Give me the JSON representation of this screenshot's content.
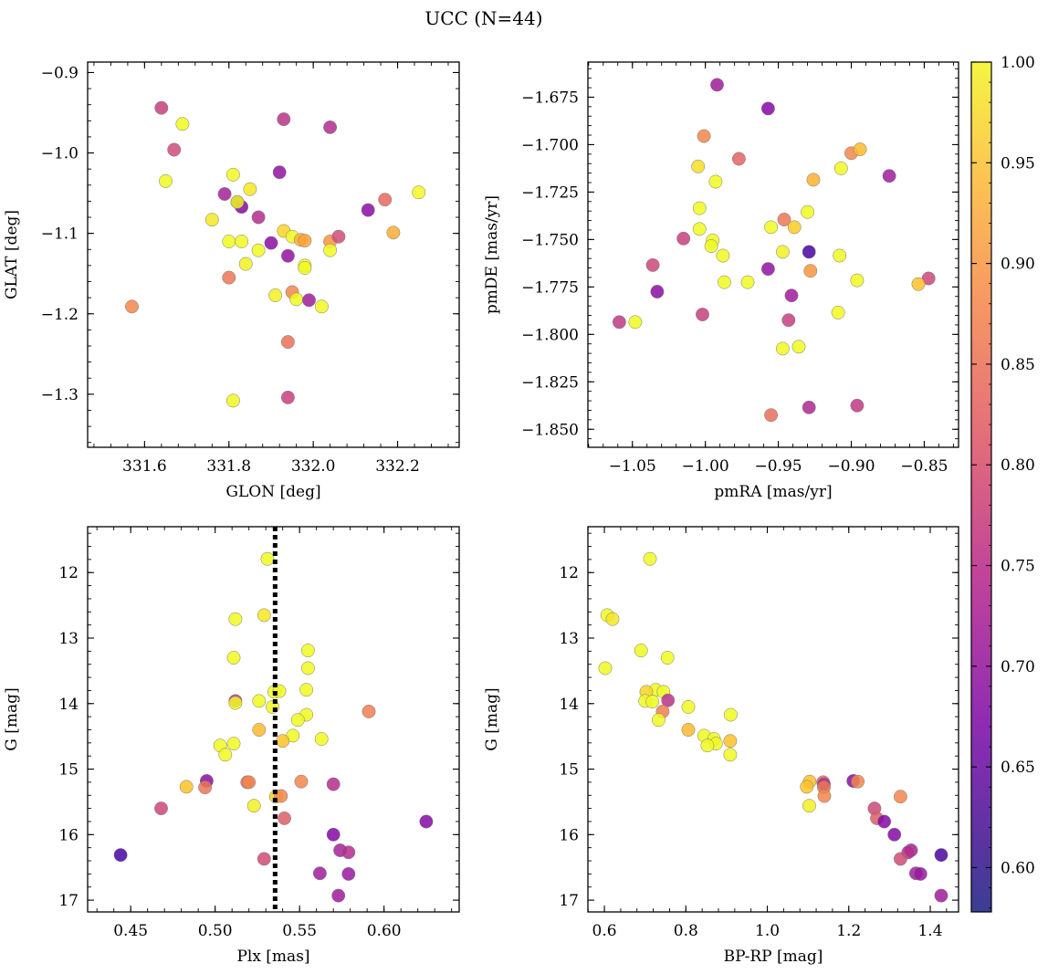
{
  "figure": {
    "title": "UCC (N=44)"
  },
  "colorbar": {
    "colormap": "plasma",
    "vmin": 0.578,
    "vmax": 1.0,
    "ticks": [
      "0.60",
      "0.65",
      "0.70",
      "0.75",
      "0.80",
      "0.85",
      "0.90",
      "0.95",
      "1.00"
    ],
    "tick_values": [
      0.6,
      0.65,
      0.7,
      0.75,
      0.8,
      0.85,
      0.9,
      0.95,
      1.0
    ]
  },
  "chart_data": [
    {
      "type": "scatter",
      "id": "glon-glat",
      "xlabel": "GLON [deg]",
      "ylabel": "GLAT [deg]",
      "xlim": [
        331.465,
        332.346
      ],
      "ylim": [
        -1.366,
        -0.887
      ],
      "y_inverted": false,
      "xticks": [
        "331.6",
        "331.8",
        "332.0",
        "332.2"
      ],
      "xtick_values": [
        331.6,
        331.8,
        332.0,
        332.2
      ],
      "yticks": [
        "−0.9",
        "−1.0",
        "−1.1",
        "−1.2",
        "−1.3"
      ],
      "ytick_values": [
        -0.9,
        -1.0,
        -1.1,
        -1.2,
        -1.3
      ],
      "points": [
        {
          "x": 331.64,
          "y": -0.944,
          "c": 0.75
        },
        {
          "x": 331.69,
          "y": -0.964,
          "c": 1.0
        },
        {
          "x": 331.67,
          "y": -0.996,
          "c": 0.77
        },
        {
          "x": 331.65,
          "y": -1.035,
          "c": 1.0
        },
        {
          "x": 331.57,
          "y": -1.191,
          "c": 0.86
        },
        {
          "x": 331.76,
          "y": -1.083,
          "c": 0.98
        },
        {
          "x": 331.79,
          "y": -1.051,
          "c": 0.7
        },
        {
          "x": 331.81,
          "y": -1.027,
          "c": 1.0
        },
        {
          "x": 331.82,
          "y": -1.061,
          "c": 0.62
        },
        {
          "x": 331.83,
          "y": -1.067,
          "c": 0.65
        },
        {
          "x": 331.82,
          "y": -1.061,
          "c": 1.0
        },
        {
          "x": 331.85,
          "y": -1.045,
          "c": 0.98
        },
        {
          "x": 331.87,
          "y": -1.08,
          "c": 0.72
        },
        {
          "x": 331.8,
          "y": -1.11,
          "c": 1.0
        },
        {
          "x": 331.83,
          "y": -1.11,
          "c": 1.0
        },
        {
          "x": 331.84,
          "y": -1.138,
          "c": 0.99
        },
        {
          "x": 331.8,
          "y": -1.155,
          "c": 0.84
        },
        {
          "x": 331.81,
          "y": -1.308,
          "c": 1.0
        },
        {
          "x": 331.87,
          "y": -1.121,
          "c": 1.0
        },
        {
          "x": 331.9,
          "y": -1.112,
          "c": 0.66
        },
        {
          "x": 331.92,
          "y": -1.024,
          "c": 0.67
        },
        {
          "x": 331.93,
          "y": -0.958,
          "c": 0.73
        },
        {
          "x": 331.93,
          "y": -1.097,
          "c": 0.96
        },
        {
          "x": 331.91,
          "y": -1.177,
          "c": 0.99
        },
        {
          "x": 331.94,
          "y": -1.128,
          "c": 0.67
        },
        {
          "x": 331.95,
          "y": -1.104,
          "c": 1.0
        },
        {
          "x": 331.97,
          "y": -1.108,
          "c": 0.92
        },
        {
          "x": 331.98,
          "y": -1.109,
          "c": 0.9
        },
        {
          "x": 331.98,
          "y": -1.14,
          "c": 1.0
        },
        {
          "x": 331.98,
          "y": -1.143,
          "c": 1.0
        },
        {
          "x": 331.95,
          "y": -1.173,
          "c": 0.86
        },
        {
          "x": 331.96,
          "y": -1.182,
          "c": 1.0
        },
        {
          "x": 331.99,
          "y": -1.183,
          "c": 0.69
        },
        {
          "x": 331.94,
          "y": -1.235,
          "c": 0.83
        },
        {
          "x": 331.94,
          "y": -1.304,
          "c": 0.75
        },
        {
          "x": 332.02,
          "y": -1.191,
          "c": 1.0
        },
        {
          "x": 332.04,
          "y": -0.968,
          "c": 0.72
        },
        {
          "x": 332.04,
          "y": -1.11,
          "c": 0.88
        },
        {
          "x": 332.06,
          "y": -1.104,
          "c": 0.77
        },
        {
          "x": 332.04,
          "y": -1.121,
          "c": 1.0
        },
        {
          "x": 332.13,
          "y": -1.071,
          "c": 0.66
        },
        {
          "x": 332.17,
          "y": -1.058,
          "c": 0.82
        },
        {
          "x": 332.19,
          "y": -1.099,
          "c": 0.91
        },
        {
          "x": 332.25,
          "y": -1.049,
          "c": 1.0
        }
      ]
    },
    {
      "type": "scatter",
      "id": "pmra-pmde",
      "xlabel": "pmRA [mas/yr]",
      "ylabel": "pmDE [mas/yr]",
      "xlim": [
        -1.0805,
        -0.8265
      ],
      "ylim": [
        -1.8595,
        -1.6565
      ],
      "y_inverted": false,
      "xticks": [
        "−1.05",
        "−1.00",
        "−0.95",
        "−0.90",
        "−0.85"
      ],
      "xtick_values": [
        -1.05,
        -1.0,
        -0.95,
        -0.9,
        -0.85
      ],
      "yticks": [
        "−1.675",
        "−1.700",
        "−1.725",
        "−1.750",
        "−1.775",
        "−1.800",
        "−1.825",
        "−1.850"
      ],
      "ytick_values": [
        -1.675,
        -1.7,
        -1.725,
        -1.75,
        -1.775,
        -1.8,
        -1.825,
        -1.85
      ],
      "points": [
        {
          "x": -0.992,
          "y": -1.6685,
          "c": 0.69
        },
        {
          "x": -0.957,
          "y": -1.681,
          "c": 0.65
        },
        {
          "x": -1.001,
          "y": -1.6955,
          "c": 0.86
        },
        {
          "x": -0.977,
          "y": -1.7075,
          "c": 0.81
        },
        {
          "x": -1.005,
          "y": -1.7115,
          "c": 0.97
        },
        {
          "x": -0.993,
          "y": -1.7195,
          "c": 1.0
        },
        {
          "x": -0.9,
          "y": -1.7045,
          "c": 0.86
        },
        {
          "x": -0.894,
          "y": -1.7025,
          "c": 0.93
        },
        {
          "x": -0.907,
          "y": -1.7125,
          "c": 1.0
        },
        {
          "x": -0.926,
          "y": -1.7185,
          "c": 0.92
        },
        {
          "x": -0.874,
          "y": -1.7165,
          "c": 0.69
        },
        {
          "x": -1.004,
          "y": -1.7335,
          "c": 1.0
        },
        {
          "x": -0.93,
          "y": -1.7355,
          "c": 1.0
        },
        {
          "x": -0.946,
          "y": -1.7395,
          "c": 0.84
        },
        {
          "x": -1.004,
          "y": -1.7445,
          "c": 1.0
        },
        {
          "x": -0.955,
          "y": -1.7435,
          "c": 1.0
        },
        {
          "x": -0.939,
          "y": -1.7435,
          "c": 0.95
        },
        {
          "x": -1.015,
          "y": -1.7495,
          "c": 0.75
        },
        {
          "x": -0.995,
          "y": -1.7505,
          "c": 1.0
        },
        {
          "x": -0.996,
          "y": -1.7535,
          "c": 1.0
        },
        {
          "x": -0.988,
          "y": -1.7585,
          "c": 1.0
        },
        {
          "x": -0.947,
          "y": -1.7565,
          "c": 0.99
        },
        {
          "x": -0.929,
          "y": -1.7565,
          "c": 0.58
        },
        {
          "x": -0.908,
          "y": -1.7585,
          "c": 1.0
        },
        {
          "x": -1.036,
          "y": -1.7635,
          "c": 0.76
        },
        {
          "x": -0.957,
          "y": -1.7655,
          "c": 0.67
        },
        {
          "x": -0.928,
          "y": -1.7665,
          "c": 0.88
        },
        {
          "x": -0.847,
          "y": -1.7705,
          "c": 0.76
        },
        {
          "x": -0.896,
          "y": -1.7715,
          "c": 1.0
        },
        {
          "x": -0.987,
          "y": -1.7725,
          "c": 1.0
        },
        {
          "x": -0.971,
          "y": -1.7725,
          "c": 1.0
        },
        {
          "x": -0.854,
          "y": -1.7735,
          "c": 0.94
        },
        {
          "x": -1.033,
          "y": -1.7775,
          "c": 0.66
        },
        {
          "x": -0.941,
          "y": -1.7795,
          "c": 0.69
        },
        {
          "x": -1.002,
          "y": -1.7895,
          "c": 0.75
        },
        {
          "x": -0.909,
          "y": -1.7885,
          "c": 1.0
        },
        {
          "x": -1.059,
          "y": -1.7935,
          "c": 0.74
        },
        {
          "x": -1.048,
          "y": -1.7935,
          "c": 1.0
        },
        {
          "x": -0.943,
          "y": -1.7925,
          "c": 0.75
        },
        {
          "x": -0.947,
          "y": -1.8075,
          "c": 1.0
        },
        {
          "x": -0.936,
          "y": -1.8065,
          "c": 1.0
        },
        {
          "x": -0.896,
          "y": -1.8375,
          "c": 0.74
        },
        {
          "x": -0.929,
          "y": -1.8385,
          "c": 0.71
        },
        {
          "x": -0.955,
          "y": -1.8425,
          "c": 0.83
        }
      ]
    },
    {
      "type": "scatter",
      "id": "plx-g",
      "xlabel": "Plx [mas]",
      "ylabel": "G [mag]",
      "xlim": [
        0.4245,
        0.6445
      ],
      "ylim": [
        17.18,
        11.3
      ],
      "y_inverted": true,
      "vline": 0.5355,
      "xticks": [
        "0.45",
        "0.50",
        "0.55",
        "0.60"
      ],
      "xtick_values": [
        0.45,
        0.5,
        0.55,
        0.6
      ],
      "yticks": [
        "12",
        "13",
        "14",
        "15",
        "16",
        "17"
      ],
      "ytick_values": [
        12,
        13,
        14,
        15,
        16,
        17
      ],
      "points": [
        {
          "x": 0.531,
          "y": 11.79,
          "c": 1.0
        },
        {
          "x": 0.512,
          "y": 12.71,
          "c": 1.0
        },
        {
          "x": 0.529,
          "y": 12.65,
          "c": 0.98
        },
        {
          "x": 0.555,
          "y": 13.19,
          "c": 1.0
        },
        {
          "x": 0.511,
          "y": 13.3,
          "c": 1.0
        },
        {
          "x": 0.555,
          "y": 13.46,
          "c": 1.0
        },
        {
          "x": 0.535,
          "y": 13.82,
          "c": 1.0
        },
        {
          "x": 0.538,
          "y": 13.81,
          "c": 1.0
        },
        {
          "x": 0.554,
          "y": 13.79,
          "c": 1.0
        },
        {
          "x": 0.512,
          "y": 13.96,
          "c": 0.73
        },
        {
          "x": 0.512,
          "y": 13.99,
          "c": 1.0
        },
        {
          "x": 0.526,
          "y": 13.96,
          "c": 1.0
        },
        {
          "x": 0.534,
          "y": 14.05,
          "c": 1.0
        },
        {
          "x": 0.591,
          "y": 14.12,
          "c": 0.85
        },
        {
          "x": 0.554,
          "y": 14.17,
          "c": 1.0
        },
        {
          "x": 0.549,
          "y": 14.25,
          "c": 1.0
        },
        {
          "x": 0.526,
          "y": 14.4,
          "c": 0.93
        },
        {
          "x": 0.546,
          "y": 14.49,
          "c": 1.0
        },
        {
          "x": 0.54,
          "y": 14.57,
          "c": 0.94
        },
        {
          "x": 0.563,
          "y": 14.54,
          "c": 1.0
        },
        {
          "x": 0.511,
          "y": 14.61,
          "c": 1.0
        },
        {
          "x": 0.503,
          "y": 14.64,
          "c": 1.0
        },
        {
          "x": 0.506,
          "y": 14.78,
          "c": 1.0
        },
        {
          "x": 0.495,
          "y": 15.18,
          "c": 0.66
        },
        {
          "x": 0.483,
          "y": 15.27,
          "c": 0.94
        },
        {
          "x": 0.494,
          "y": 15.28,
          "c": 0.84
        },
        {
          "x": 0.519,
          "y": 15.2,
          "c": 0.82
        },
        {
          "x": 0.52,
          "y": 15.2,
          "c": 0.86
        },
        {
          "x": 0.551,
          "y": 15.19,
          "c": 0.86
        },
        {
          "x": 0.57,
          "y": 15.23,
          "c": 0.72
        },
        {
          "x": 0.536,
          "y": 15.42,
          "c": 0.96
        },
        {
          "x": 0.539,
          "y": 15.41,
          "c": 0.86
        },
        {
          "x": 0.523,
          "y": 15.56,
          "c": 0.99
        },
        {
          "x": 0.468,
          "y": 15.6,
          "c": 0.76
        },
        {
          "x": 0.541,
          "y": 15.75,
          "c": 0.8
        },
        {
          "x": 0.625,
          "y": 15.8,
          "c": 0.65
        },
        {
          "x": 0.444,
          "y": 16.31,
          "c": 0.58
        },
        {
          "x": 0.57,
          "y": 16.0,
          "c": 0.65
        },
        {
          "x": 0.574,
          "y": 16.24,
          "c": 0.7
        },
        {
          "x": 0.579,
          "y": 16.27,
          "c": 0.72
        },
        {
          "x": 0.529,
          "y": 16.37,
          "c": 0.77
        },
        {
          "x": 0.562,
          "y": 16.59,
          "c": 0.69
        },
        {
          "x": 0.579,
          "y": 16.6,
          "c": 0.68
        },
        {
          "x": 0.573,
          "y": 16.93,
          "c": 0.69
        }
      ]
    },
    {
      "type": "scatter",
      "id": "bprp-g",
      "xlabel": "BP-RP [mag]",
      "ylabel": "G [mag]",
      "xlim": [
        0.5595,
        1.4695
      ],
      "ylim": [
        17.18,
        11.3
      ],
      "y_inverted": true,
      "xticks": [
        "0.6",
        "0.8",
        "1.0",
        "1.2",
        "1.4"
      ],
      "xtick_values": [
        0.6,
        0.8,
        1.0,
        1.2,
        1.4
      ],
      "yticks": [
        "12",
        "13",
        "14",
        "15",
        "16",
        "17"
      ],
      "ytick_values": [
        12,
        13,
        14,
        15,
        16,
        17
      ],
      "points": [
        {
          "x": 0.712,
          "y": 11.79,
          "c": 1.0
        },
        {
          "x": 0.607,
          "y": 12.65,
          "c": 1.0
        },
        {
          "x": 0.62,
          "y": 12.71,
          "c": 0.98
        },
        {
          "x": 0.69,
          "y": 13.19,
          "c": 1.0
        },
        {
          "x": 0.755,
          "y": 13.3,
          "c": 1.0
        },
        {
          "x": 0.602,
          "y": 13.46,
          "c": 1.0
        },
        {
          "x": 0.726,
          "y": 13.79,
          "c": 1.0
        },
        {
          "x": 0.703,
          "y": 13.82,
          "c": 0.96
        },
        {
          "x": 0.745,
          "y": 13.82,
          "c": 1.0
        },
        {
          "x": 0.756,
          "y": 13.95,
          "c": 0.73
        },
        {
          "x": 0.7,
          "y": 13.96,
          "c": 1.0
        },
        {
          "x": 0.718,
          "y": 13.97,
          "c": 1.0
        },
        {
          "x": 0.806,
          "y": 14.05,
          "c": 1.0
        },
        {
          "x": 0.743,
          "y": 14.12,
          "c": 0.85
        },
        {
          "x": 0.91,
          "y": 14.17,
          "c": 1.0
        },
        {
          "x": 0.733,
          "y": 14.25,
          "c": 1.0
        },
        {
          "x": 0.806,
          "y": 14.4,
          "c": 0.93
        },
        {
          "x": 0.845,
          "y": 14.49,
          "c": 1.0
        },
        {
          "x": 0.869,
          "y": 14.54,
          "c": 1.0
        },
        {
          "x": 0.909,
          "y": 14.57,
          "c": 0.94
        },
        {
          "x": 0.874,
          "y": 14.61,
          "c": 1.0
        },
        {
          "x": 0.853,
          "y": 14.64,
          "c": 1.0
        },
        {
          "x": 0.909,
          "y": 14.78,
          "c": 1.0
        },
        {
          "x": 1.211,
          "y": 15.18,
          "c": 0.66
        },
        {
          "x": 1.104,
          "y": 15.19,
          "c": 0.94
        },
        {
          "x": 1.222,
          "y": 15.19,
          "c": 0.86
        },
        {
          "x": 1.137,
          "y": 15.2,
          "c": 0.82
        },
        {
          "x": 1.139,
          "y": 15.23,
          "c": 0.72
        },
        {
          "x": 1.097,
          "y": 15.27,
          "c": 0.94
        },
        {
          "x": 1.139,
          "y": 15.28,
          "c": 0.84
        },
        {
          "x": 1.14,
          "y": 15.41,
          "c": 0.86
        },
        {
          "x": 1.327,
          "y": 15.42,
          "c": 0.86
        },
        {
          "x": 1.103,
          "y": 15.56,
          "c": 0.99
        },
        {
          "x": 1.263,
          "y": 15.6,
          "c": 0.76
        },
        {
          "x": 1.269,
          "y": 15.75,
          "c": 0.8
        },
        {
          "x": 1.287,
          "y": 15.8,
          "c": 0.65
        },
        {
          "x": 1.312,
          "y": 16.0,
          "c": 0.65
        },
        {
          "x": 1.353,
          "y": 16.24,
          "c": 0.7
        },
        {
          "x": 1.346,
          "y": 16.27,
          "c": 0.72
        },
        {
          "x": 1.427,
          "y": 16.31,
          "c": 0.58
        },
        {
          "x": 1.327,
          "y": 16.37,
          "c": 0.77
        },
        {
          "x": 1.365,
          "y": 16.59,
          "c": 0.69
        },
        {
          "x": 1.376,
          "y": 16.6,
          "c": 0.68
        },
        {
          "x": 1.427,
          "y": 16.93,
          "c": 0.69
        }
      ]
    }
  ]
}
